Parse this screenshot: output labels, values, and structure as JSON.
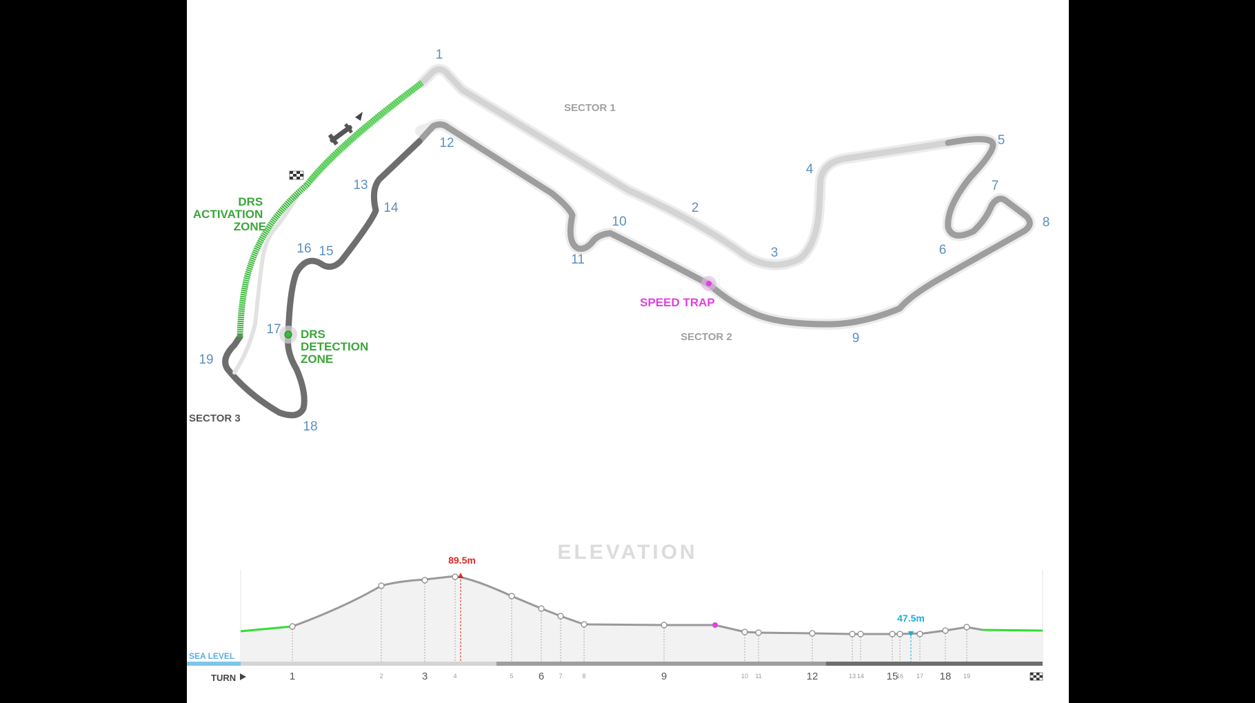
{
  "track": {
    "turns": [
      {
        "n": "1"
      },
      {
        "n": "2"
      },
      {
        "n": "3"
      },
      {
        "n": "4"
      },
      {
        "n": "5"
      },
      {
        "n": "6"
      },
      {
        "n": "7"
      },
      {
        "n": "8"
      },
      {
        "n": "9"
      },
      {
        "n": "10"
      },
      {
        "n": "11"
      },
      {
        "n": "12"
      },
      {
        "n": "13"
      },
      {
        "n": "14"
      },
      {
        "n": "15"
      },
      {
        "n": "16"
      },
      {
        "n": "17"
      },
      {
        "n": "18"
      },
      {
        "n": "19"
      }
    ],
    "sectors": {
      "s1": "SECTOR 1",
      "s2": "SECTOR 2",
      "s3": "SECTOR 3"
    },
    "drs_activation": [
      "DRS",
      "ACTIVATION",
      "ZONE"
    ],
    "drs_detection": [
      "DRS",
      "DETECTION",
      "ZONE"
    ],
    "speed_trap": "SPEED TRAP",
    "colors": {
      "sector1": "#d4d4d4",
      "sector2": "#9e9e9e",
      "sector3": "#6e6e6e",
      "drs": "#3cb83c",
      "speed": "#e040e0",
      "turn": "#5a8fc0"
    }
  },
  "elevation": {
    "title": "ELEVATION",
    "max_label": "89.5m",
    "min_label": "47.5m",
    "sea_level": "SEA LEVEL",
    "turn_label": "TURN",
    "ticks": [
      {
        "n": "1",
        "size": "big"
      },
      {
        "n": "2",
        "size": "small"
      },
      {
        "n": "3",
        "size": "big"
      },
      {
        "n": "4",
        "size": "small"
      },
      {
        "n": "5",
        "size": "small"
      },
      {
        "n": "6",
        "size": "big"
      },
      {
        "n": "7",
        "size": "small"
      },
      {
        "n": "8",
        "size": "small"
      },
      {
        "n": "9",
        "size": "big"
      },
      {
        "n": "10",
        "size": "small"
      },
      {
        "n": "11",
        "size": "small"
      },
      {
        "n": "12",
        "size": "big"
      },
      {
        "n": "13",
        "size": "small"
      },
      {
        "n": "14",
        "size": "small"
      },
      {
        "n": "15",
        "size": "big"
      },
      {
        "n": "16",
        "size": "small"
      },
      {
        "n": "17",
        "size": "small"
      },
      {
        "n": "18",
        "size": "big"
      },
      {
        "n": "19",
        "size": "small"
      }
    ]
  }
}
